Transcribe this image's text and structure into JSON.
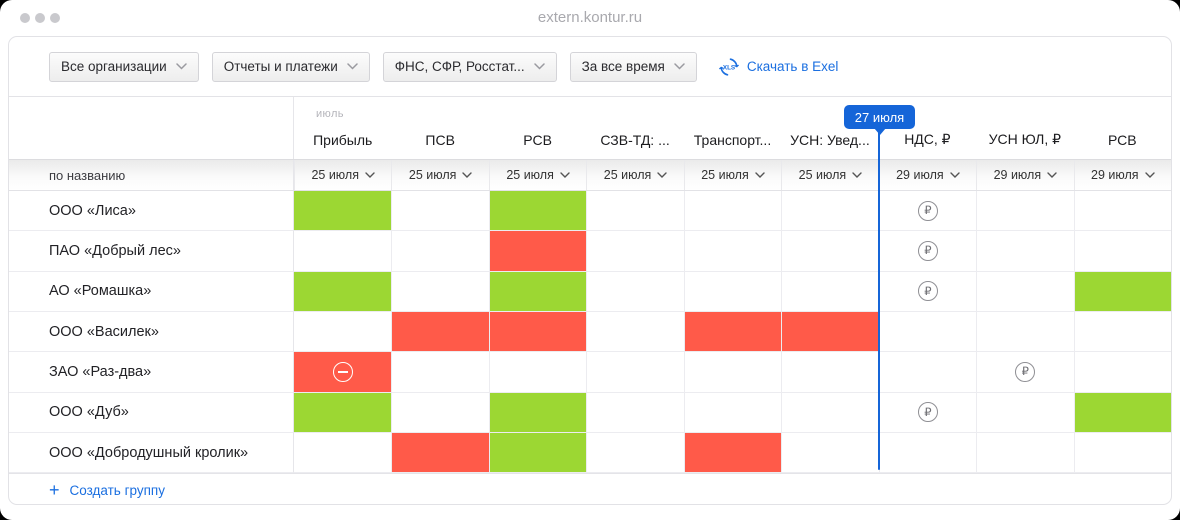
{
  "window": {
    "url": "extern.kontur.ru"
  },
  "filters": [
    {
      "label": "Все организации"
    },
    {
      "label": "Отчеты и платежи"
    },
    {
      "label": "ФНС, СФР, Росстат..."
    },
    {
      "label": "За все время"
    }
  ],
  "export": {
    "label": "Скачать в Exel",
    "icon": "xls-circle-icon"
  },
  "timeline": {
    "month_label": "июль",
    "marker_label": "27 июля",
    "marker_color": "#1565d8"
  },
  "table": {
    "row_header_label": "по названию",
    "columns": [
      {
        "title": "Прибыль",
        "date": "25 июля"
      },
      {
        "title": "ПСВ",
        "date": "25 июля"
      },
      {
        "title": "РСВ",
        "date": "25 июля"
      },
      {
        "title": "СЗВ-ТД: ...",
        "date": "25 июля"
      },
      {
        "title": "Транспорт...",
        "date": "25 июля"
      },
      {
        "title": "УСН: Увед...",
        "date": "25 июля"
      },
      {
        "title": "НДС, ₽",
        "date": "29 июля"
      },
      {
        "title": "УСН ЮЛ, ₽",
        "date": "29 июля"
      },
      {
        "title": "РСВ",
        "date": "29 июля"
      }
    ],
    "rows": [
      {
        "name": "ООО «Лиса»",
        "cells": [
          "done",
          "",
          "done",
          "",
          "",
          "",
          "rub",
          "",
          ""
        ]
      },
      {
        "name": "ПАО «Добрый лес»",
        "cells": [
          "",
          "",
          "overdue",
          "",
          "",
          "",
          "rub",
          "",
          ""
        ]
      },
      {
        "name": "АО «Ромашка»",
        "cells": [
          "done",
          "",
          "done",
          "",
          "",
          "",
          "rub",
          "",
          "done"
        ]
      },
      {
        "name": "ООО «Василек»",
        "cells": [
          "",
          "overdue",
          "overdue",
          "",
          "overdue",
          "overdue",
          "",
          "",
          ""
        ]
      },
      {
        "name": "ЗАО «Раз-два»",
        "cells": [
          "overdue-minus",
          "",
          "",
          "",
          "",
          "",
          "",
          "rub",
          ""
        ]
      },
      {
        "name": "ООО «Дуб»",
        "cells": [
          "done",
          "",
          "done",
          "",
          "",
          "",
          "rub",
          "",
          "done"
        ]
      },
      {
        "name": "ООО «Добродушный кролик»",
        "cells": [
          "",
          "overdue",
          "done",
          "",
          "overdue",
          "",
          "",
          "",
          ""
        ]
      }
    ],
    "status_colors": {
      "done": "#9cd733",
      "overdue": "#ff5a49"
    },
    "icon_legend": {
      "rub": "ruble-payment-icon",
      "minus": "not-required-icon"
    }
  },
  "footer": {
    "create_group_label": "Создать группу"
  }
}
